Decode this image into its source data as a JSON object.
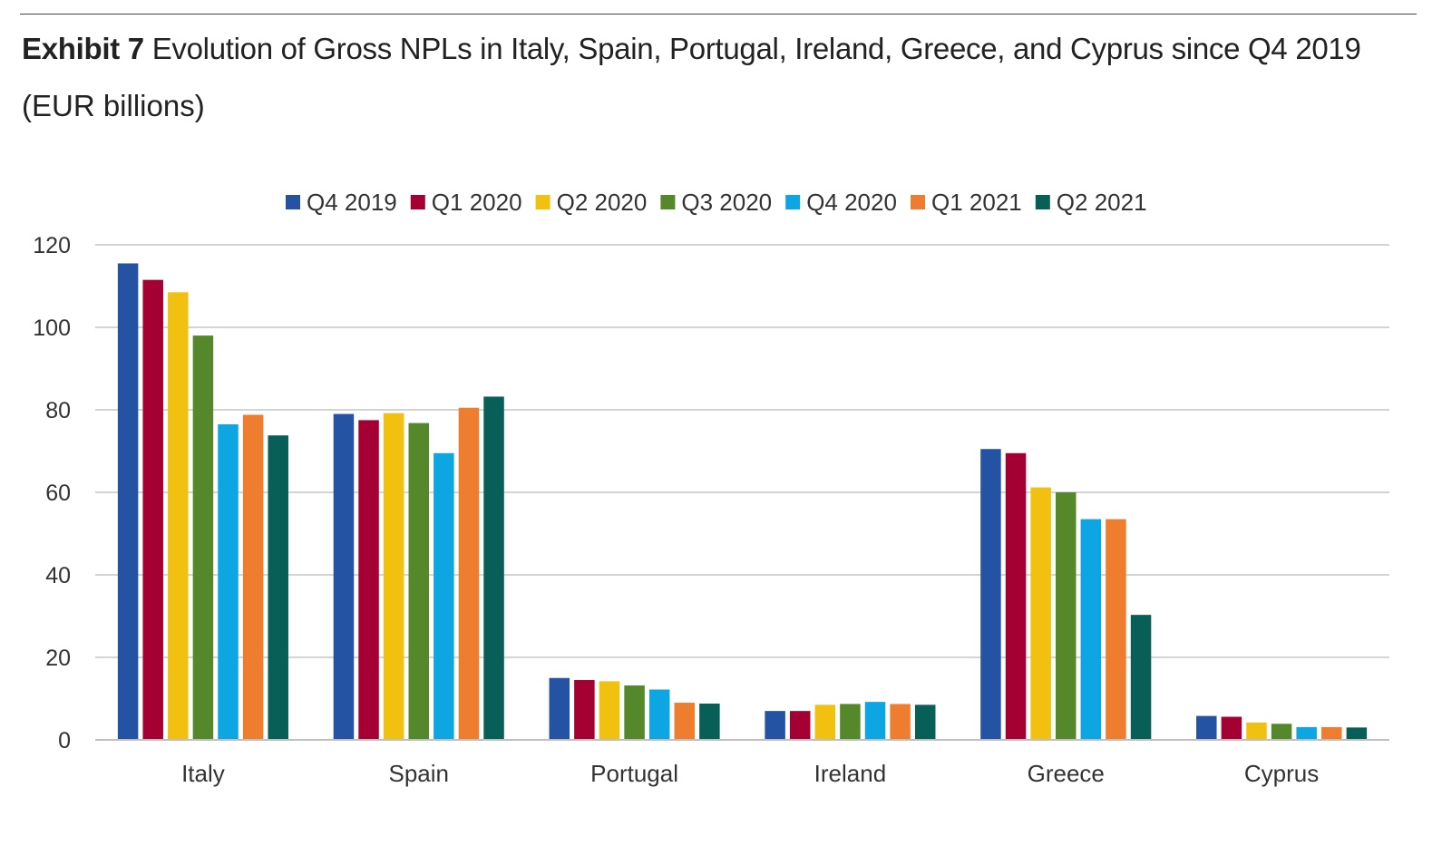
{
  "header": {
    "exhibit_label": "Exhibit 7",
    "title": "Evolution of Gross NPLs in Italy, Spain, Portugal, Ireland, Greece, and Cyprus since Q4 2019",
    "subtitle": "(EUR billions)"
  },
  "chart_data": {
    "type": "bar",
    "title": "Evolution of Gross NPLs in Italy, Spain, Portugal, Ireland, Greece, and Cyprus since Q4 2019",
    "subtitle": "(EUR billions)",
    "xlabel": "",
    "ylabel": "",
    "ylim": [
      0,
      120
    ],
    "yticks": [
      0,
      20,
      40,
      60,
      80,
      100,
      120
    ],
    "grid": true,
    "legend_position": "top-center",
    "categories": [
      "Italy",
      "Spain",
      "Portugal",
      "Ireland",
      "Greece",
      "Cyprus"
    ],
    "series": [
      {
        "name": "Q4 2019",
        "color": "#2453A3",
        "values": [
          115.5,
          79.0,
          15.0,
          7.0,
          70.5,
          5.8
        ]
      },
      {
        "name": "Q1 2020",
        "color": "#A50034",
        "values": [
          111.5,
          77.5,
          14.5,
          7.0,
          69.5,
          5.6
        ]
      },
      {
        "name": "Q2 2020",
        "color": "#F2C10F",
        "values": [
          108.5,
          79.2,
          14.2,
          8.5,
          61.2,
          4.2
        ]
      },
      {
        "name": "Q3 2020",
        "color": "#54882A",
        "values": [
          98.0,
          76.8,
          13.2,
          8.7,
          60.0,
          3.9
        ]
      },
      {
        "name": "Q4 2020",
        "color": "#0EA5E3",
        "values": [
          76.5,
          69.5,
          12.2,
          9.2,
          53.5,
          3.1
        ]
      },
      {
        "name": "Q1 2021",
        "color": "#EE7D30",
        "values": [
          78.8,
          80.5,
          9.0,
          8.7,
          53.5,
          3.1
        ]
      },
      {
        "name": "Q2 2021",
        "color": "#075F58",
        "values": [
          73.8,
          83.2,
          8.8,
          8.5,
          30.3,
          3.0
        ]
      }
    ]
  }
}
